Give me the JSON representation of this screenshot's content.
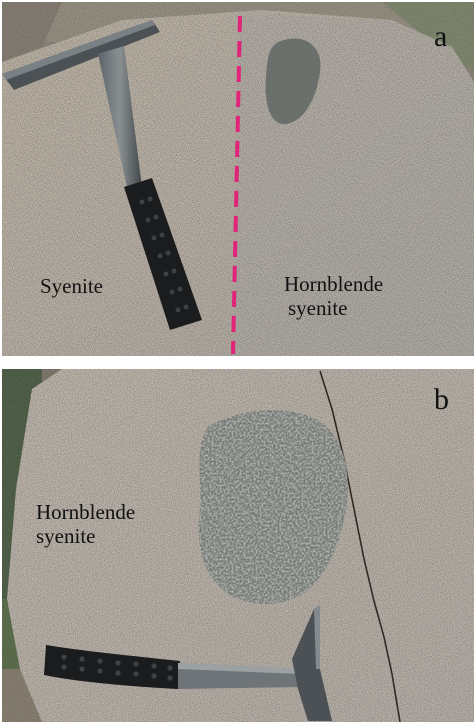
{
  "panel_a": {
    "letter": "a",
    "left_label": "Syenite",
    "right_label_line1": "Hornblende",
    "right_label_line2": "syenite",
    "contact_color": "#e2237a"
  },
  "panel_b": {
    "letter": "b",
    "label_line1": "Hornblende",
    "label_line2": "syenite"
  }
}
